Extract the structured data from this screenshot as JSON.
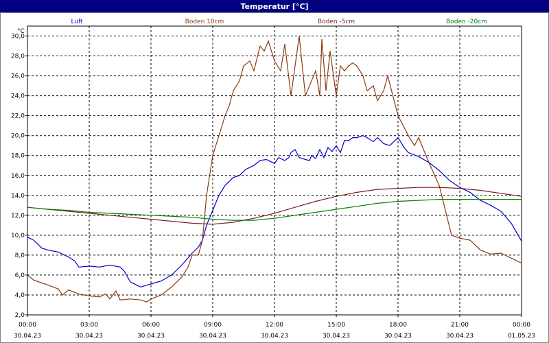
{
  "window": {
    "title": "Temperatur [°C]"
  },
  "chart_data": {
    "type": "line",
    "title": "Temperatur [°C]",
    "ylabel": "°C",
    "xlabel": "",
    "ylim": [
      2.0,
      31.0
    ],
    "xlim": [
      0,
      24
    ],
    "grid": true,
    "legend_position": "top",
    "yticks": [
      "2,0",
      "4,0",
      "6,0",
      "8,0",
      "10,0",
      "12,0",
      "14,0",
      "16,0",
      "18,0",
      "20,0",
      "22,0",
      "24,0",
      "26,0",
      "28,0",
      "30,0"
    ],
    "xticks": [
      {
        "time": "00:00",
        "date": "30.04.23"
      },
      {
        "time": "03:00",
        "date": "30.04.23"
      },
      {
        "time": "06:00",
        "date": "30.04.23"
      },
      {
        "time": "09:00",
        "date": "30.04.23"
      },
      {
        "time": "12:00",
        "date": "30.04.23"
      },
      {
        "time": "15:00",
        "date": "30.04.23"
      },
      {
        "time": "18:00",
        "date": "30.04.23"
      },
      {
        "time": "21:00",
        "date": "30.04.23"
      },
      {
        "time": "00:00",
        "date": "01.05.23"
      }
    ],
    "series": [
      {
        "name": "Luft",
        "color": "#0000cc",
        "points": [
          [
            0,
            9.8
          ],
          [
            0.3,
            9.5
          ],
          [
            0.7,
            8.7
          ],
          [
            1.0,
            8.5
          ],
          [
            1.5,
            8.3
          ],
          [
            2.0,
            7.8
          ],
          [
            2.3,
            7.4
          ],
          [
            2.5,
            6.8
          ],
          [
            3.0,
            6.9
          ],
          [
            3.5,
            6.8
          ],
          [
            4.0,
            7.0
          ],
          [
            4.5,
            6.8
          ],
          [
            4.7,
            6.4
          ],
          [
            5.0,
            5.3
          ],
          [
            5.3,
            5.0
          ],
          [
            5.5,
            4.8
          ],
          [
            6.0,
            5.1
          ],
          [
            6.5,
            5.4
          ],
          [
            7.0,
            6.0
          ],
          [
            7.5,
            7.0
          ],
          [
            8.0,
            8.2
          ],
          [
            8.3,
            8.8
          ],
          [
            8.5,
            9.5
          ],
          [
            8.7,
            11.0
          ],
          [
            9.0,
            12.5
          ],
          [
            9.3,
            14.0
          ],
          [
            9.6,
            15.0
          ],
          [
            10.0,
            15.8
          ],
          [
            10.3,
            16.0
          ],
          [
            10.6,
            16.6
          ],
          [
            11.0,
            17.0
          ],
          [
            11.3,
            17.5
          ],
          [
            11.6,
            17.6
          ],
          [
            12.0,
            17.2
          ],
          [
            12.2,
            17.8
          ],
          [
            12.5,
            17.5
          ],
          [
            12.7,
            17.8
          ],
          [
            12.8,
            18.3
          ],
          [
            13.0,
            18.6
          ],
          [
            13.2,
            17.8
          ],
          [
            13.5,
            17.6
          ],
          [
            13.7,
            17.5
          ],
          [
            13.8,
            18.0
          ],
          [
            14.0,
            17.7
          ],
          [
            14.2,
            18.6
          ],
          [
            14.4,
            17.8
          ],
          [
            14.6,
            18.8
          ],
          [
            14.8,
            18.4
          ],
          [
            15.0,
            19.0
          ],
          [
            15.2,
            18.3
          ],
          [
            15.4,
            19.5
          ],
          [
            15.6,
            19.5
          ],
          [
            15.8,
            19.8
          ],
          [
            16.0,
            19.8
          ],
          [
            16.3,
            20.0
          ],
          [
            16.5,
            19.8
          ],
          [
            16.8,
            19.4
          ],
          [
            17.0,
            19.8
          ],
          [
            17.3,
            19.2
          ],
          [
            17.6,
            19.0
          ],
          [
            18.0,
            19.8
          ],
          [
            18.3,
            18.8
          ],
          [
            18.5,
            18.3
          ],
          [
            19.0,
            17.9
          ],
          [
            19.5,
            17.3
          ],
          [
            20.0,
            16.5
          ],
          [
            20.5,
            15.5
          ],
          [
            21.0,
            14.8
          ],
          [
            21.5,
            14.3
          ],
          [
            22.0,
            13.5
          ],
          [
            22.5,
            13.0
          ],
          [
            23.0,
            12.4
          ],
          [
            23.5,
            11.2
          ],
          [
            24.0,
            9.4
          ]
        ]
      },
      {
        "name": "Boden 10cm",
        "color": "#8b3a10",
        "points": [
          [
            0,
            6.0
          ],
          [
            0.3,
            5.5
          ],
          [
            0.7,
            5.2
          ],
          [
            1.0,
            5.0
          ],
          [
            1.5,
            4.6
          ],
          [
            1.7,
            4.0
          ],
          [
            2.0,
            4.5
          ],
          [
            2.5,
            4.1
          ],
          [
            3.0,
            3.9
          ],
          [
            3.5,
            3.8
          ],
          [
            3.8,
            4.1
          ],
          [
            4.0,
            3.6
          ],
          [
            4.3,
            4.4
          ],
          [
            4.5,
            3.5
          ],
          [
            5.0,
            3.6
          ],
          [
            5.5,
            3.5
          ],
          [
            5.8,
            3.3
          ],
          [
            6.0,
            3.6
          ],
          [
            6.5,
            4.0
          ],
          [
            7.0,
            4.8
          ],
          [
            7.5,
            5.8
          ],
          [
            7.8,
            6.8
          ],
          [
            8.0,
            8.0
          ],
          [
            8.3,
            8.0
          ],
          [
            8.5,
            9.5
          ],
          [
            8.7,
            14.0
          ],
          [
            9.0,
            18.0
          ],
          [
            9.3,
            20.0
          ],
          [
            9.6,
            22.0
          ],
          [
            9.8,
            23.0
          ],
          [
            10.0,
            24.5
          ],
          [
            10.3,
            25.5
          ],
          [
            10.5,
            27.0
          ],
          [
            10.8,
            27.5
          ],
          [
            11.0,
            26.5
          ],
          [
            11.3,
            29.0
          ],
          [
            11.5,
            28.5
          ],
          [
            11.7,
            29.5
          ],
          [
            12.0,
            27.5
          ],
          [
            12.3,
            26.5
          ],
          [
            12.5,
            29.2
          ],
          [
            12.8,
            24.0
          ],
          [
            13.0,
            27.0
          ],
          [
            13.2,
            30.0
          ],
          [
            13.5,
            24.0
          ],
          [
            13.8,
            25.5
          ],
          [
            14.0,
            26.5
          ],
          [
            14.2,
            24.0
          ],
          [
            14.3,
            29.7
          ],
          [
            14.5,
            24.5
          ],
          [
            14.7,
            28.5
          ],
          [
            15.0,
            24.0
          ],
          [
            15.2,
            27.0
          ],
          [
            15.4,
            26.5
          ],
          [
            15.6,
            27.0
          ],
          [
            15.8,
            27.3
          ],
          [
            16.0,
            27.0
          ],
          [
            16.3,
            26.0
          ],
          [
            16.5,
            24.5
          ],
          [
            16.8,
            25.0
          ],
          [
            17.0,
            23.5
          ],
          [
            17.3,
            24.5
          ],
          [
            17.5,
            26.0
          ],
          [
            18.0,
            22.0
          ],
          [
            18.5,
            20.0
          ],
          [
            18.8,
            19.0
          ],
          [
            19.0,
            19.8
          ],
          [
            19.5,
            17.3
          ],
          [
            20.0,
            15.0
          ],
          [
            20.3,
            12.5
          ],
          [
            20.6,
            10.0
          ],
          [
            21.0,
            9.7
          ],
          [
            21.5,
            9.5
          ],
          [
            22.0,
            8.5
          ],
          [
            22.5,
            8.1
          ],
          [
            23.0,
            8.2
          ],
          [
            23.5,
            7.7
          ],
          [
            24.0,
            7.2
          ]
        ]
      },
      {
        "name": "Boden -5cm",
        "color": "#7b1f1f",
        "points": [
          [
            0,
            12.8
          ],
          [
            1,
            12.6
          ],
          [
            2,
            12.4
          ],
          [
            3,
            12.2
          ],
          [
            4,
            12.0
          ],
          [
            5,
            11.8
          ],
          [
            6,
            11.6
          ],
          [
            7,
            11.4
          ],
          [
            8,
            11.2
          ],
          [
            9,
            11.1
          ],
          [
            10,
            11.3
          ],
          [
            11,
            11.7
          ],
          [
            12,
            12.2
          ],
          [
            13,
            12.8
          ],
          [
            14,
            13.4
          ],
          [
            15,
            13.9
          ],
          [
            16,
            14.3
          ],
          [
            17,
            14.6
          ],
          [
            18,
            14.7
          ],
          [
            19,
            14.8
          ],
          [
            20,
            14.8
          ],
          [
            21,
            14.7
          ],
          [
            22,
            14.5
          ],
          [
            23,
            14.2
          ],
          [
            24,
            13.9
          ]
        ]
      },
      {
        "name": "Boden -20cm",
        "color": "#008000",
        "points": [
          [
            0,
            12.8
          ],
          [
            1,
            12.6
          ],
          [
            2,
            12.5
          ],
          [
            3,
            12.3
          ],
          [
            4,
            12.2
          ],
          [
            5,
            12.1
          ],
          [
            6,
            12.0
          ],
          [
            7,
            11.9
          ],
          [
            8,
            11.8
          ],
          [
            9,
            11.6
          ],
          [
            10,
            11.5
          ],
          [
            11,
            11.5
          ],
          [
            12,
            11.7
          ],
          [
            13,
            12.0
          ],
          [
            14,
            12.3
          ],
          [
            15,
            12.6
          ],
          [
            16,
            12.9
          ],
          [
            17,
            13.2
          ],
          [
            18,
            13.4
          ],
          [
            19,
            13.5
          ],
          [
            20,
            13.6
          ],
          [
            21,
            13.6
          ],
          [
            22,
            13.6
          ],
          [
            23,
            13.6
          ],
          [
            24,
            13.6
          ]
        ]
      }
    ]
  }
}
